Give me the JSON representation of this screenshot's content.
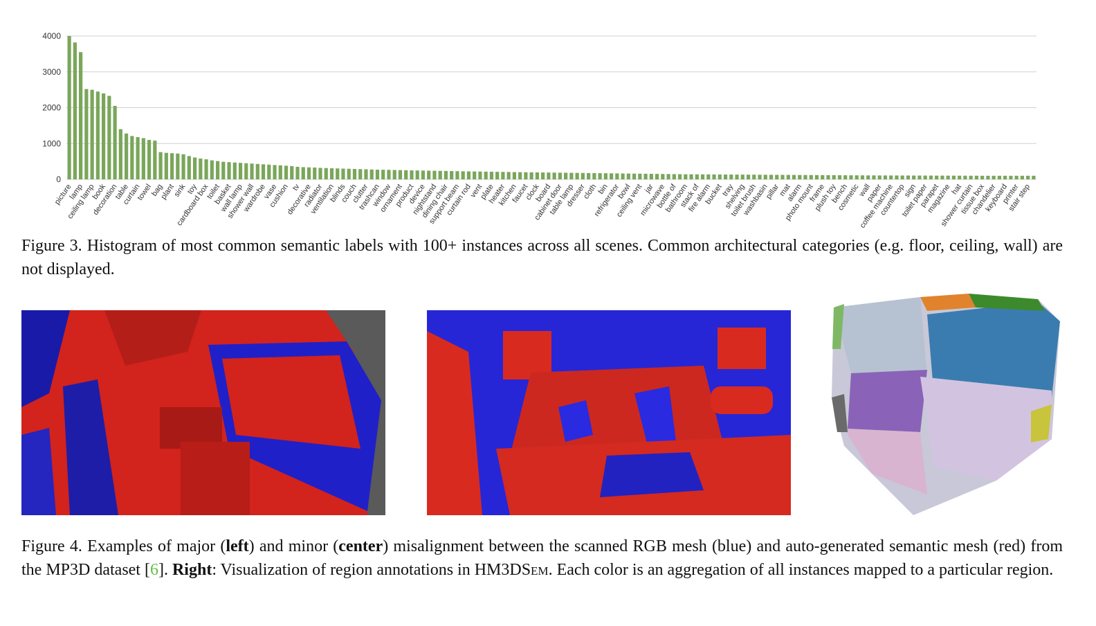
{
  "chart_data": {
    "type": "bar",
    "color": "#7aa65a",
    "grid": true,
    "ylim": [
      0,
      4000
    ],
    "yticks": [
      0,
      1000,
      2000,
      3000,
      4000
    ],
    "categories": [
      "picture",
      null,
      "lamp",
      null,
      "ceiling lamp",
      null,
      "book",
      null,
      "decoration",
      null,
      "table",
      null,
      "curtain",
      null,
      "towel",
      null,
      "bag",
      null,
      "plant",
      null,
      "sink",
      null,
      "toy",
      null,
      "cardboard box",
      null,
      "toilet",
      null,
      "basket",
      null,
      "wall lamp",
      null,
      "shower wall",
      null,
      "wardrobe",
      null,
      "vase",
      null,
      "cushion",
      null,
      "tv",
      null,
      "decorative",
      null,
      "radiator",
      null,
      "ventilation",
      null,
      "blinds",
      null,
      "couch",
      null,
      "clutter",
      null,
      "trashcan",
      null,
      "window",
      null,
      "ornament",
      null,
      "product",
      null,
      "device",
      null,
      "nightstand",
      null,
      "dining chair",
      null,
      "support beam",
      null,
      "curtain rod",
      null,
      "vent",
      null,
      "plate",
      null,
      "heater",
      null,
      "kitchen",
      null,
      "faucet",
      null,
      "clock",
      null,
      "board",
      null,
      "cabinet door",
      null,
      "table lamp",
      null,
      "dresser",
      null,
      "cloth",
      null,
      "bin",
      null,
      "refrigerator",
      null,
      "bowl",
      null,
      "ceiling vent",
      null,
      "jar",
      null,
      "microwave",
      null,
      "bottle of",
      null,
      "bathroom",
      null,
      "stack of",
      null,
      "fire alarm",
      null,
      "bucket",
      null,
      "tray",
      null,
      "shelving",
      null,
      "toilet brush",
      null,
      "washbasin",
      null,
      "pillar",
      null,
      "mat",
      null,
      "alarm",
      null,
      "photo mount",
      null,
      "frame",
      null,
      "plush toy",
      null,
      "bench",
      null,
      "cosmetic",
      null,
      "wall",
      null,
      "paper",
      null,
      "coffee machine",
      null,
      "countertop",
      null,
      "sign",
      null,
      "toilet paper",
      null,
      "parapet",
      null,
      "magazine",
      null,
      "hat",
      null,
      "shower curtain",
      null,
      "tissue box",
      null,
      "chandelier",
      null,
      "keyboard",
      null,
      "printer",
      null,
      "stair step",
      null
    ],
    "values": [
      4000,
      3820,
      3550,
      2520,
      2500,
      2450,
      2400,
      2330,
      2050,
      1400,
      1280,
      1210,
      1180,
      1150,
      1100,
      1080,
      760,
      740,
      730,
      720,
      700,
      650,
      610,
      580,
      560,
      530,
      510,
      490,
      480,
      470,
      460,
      450,
      440,
      430,
      420,
      410,
      400,
      390,
      380,
      370,
      350,
      340,
      335,
      330,
      320,
      315,
      310,
      305,
      300,
      295,
      290,
      285,
      280,
      275,
      270,
      268,
      265,
      262,
      258,
      255,
      250,
      248,
      245,
      242,
      240,
      237,
      234,
      231,
      228,
      225,
      222,
      220,
      218,
      215,
      212,
      210,
      208,
      205,
      202,
      200,
      198,
      196,
      194,
      192,
      190,
      188,
      186,
      184,
      182,
      180,
      178,
      176,
      174,
      172,
      170,
      168,
      166,
      164,
      162,
      160,
      158,
      156,
      154,
      152,
      150,
      148,
      146,
      144,
      142,
      141,
      140,
      139,
      138,
      137,
      136,
      135,
      134,
      133,
      132,
      131,
      130,
      129,
      128,
      127,
      126,
      125,
      124,
      123,
      122,
      121,
      120,
      119,
      118,
      117,
      116,
      115,
      114,
      113,
      112,
      111,
      110,
      110,
      109,
      109,
      108,
      108,
      107,
      107,
      106,
      106,
      105,
      105,
      104,
      104,
      103,
      103,
      102,
      102,
      101,
      101,
      100,
      100,
      100,
      100,
      100,
      100,
      100,
      100,
      100,
      100
    ]
  },
  "figure3_caption": "Figure 3. Histogram of most common semantic labels with 100+ instances across all scenes. Common architectural categories (e.g. floor, ceiling, wall) are not displayed.",
  "figure4_caption": [
    "Figure 4. Examples of major (",
    "left",
    ") and minor (",
    "center",
    ") misalignment between the scanned RGB mesh (blue) and auto-generated semantic mesh (red) from the MP3D dataset [",
    "6",
    "]. ",
    "Right",
    ": Visualization of region annotations in HM3D",
    "Sem",
    ". Each color is an aggregation of all instances mapped to a particular region."
  ]
}
